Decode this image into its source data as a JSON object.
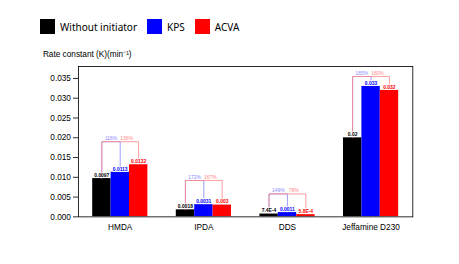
{
  "chart_data": {
    "type": "bar",
    "categories": [
      "HMDA",
      "IPDA",
      "DDS",
      "Jeffamine D230"
    ],
    "series": [
      {
        "name": "Without initiator",
        "color": "#000000",
        "values": [
          0.0097,
          0.0018,
          0.00074,
          0.02
        ],
        "value_labels": [
          "0.0097",
          "0.0018",
          "7.4E-4",
          "0.02"
        ]
      },
      {
        "name": "KPS",
        "color": "#0000FF",
        "values": [
          0.0113,
          0.0031,
          0.0011,
          0.033
        ],
        "value_labels": [
          "0.0113",
          "0.0031",
          "0.0011",
          "0.033"
        ]
      },
      {
        "name": "ACVA",
        "color": "#FF0000",
        "values": [
          0.0132,
          0.003,
          0.00058,
          0.032
        ],
        "value_labels": [
          "0.0132",
          "0.003",
          "5.8E-4",
          "0.032"
        ]
      }
    ],
    "annotations": [
      {
        "category": "HMDA",
        "from": "Without initiator",
        "to": "KPS",
        "y": 0.019,
        "text": "116%",
        "color": "#8888FF"
      },
      {
        "category": "HMDA",
        "from": "Without initiator",
        "to": "ACVA",
        "y": 0.019,
        "text": "136%",
        "color": "#FF8888"
      },
      {
        "category": "IPDA",
        "from": "Without initiator",
        "to": "KPS",
        "y": 0.0092,
        "text": "172%",
        "color": "#8888FF"
      },
      {
        "category": "IPDA",
        "from": "Without initiator",
        "to": "ACVA",
        "y": 0.0092,
        "text": "167%",
        "color": "#FF8888"
      },
      {
        "category": "DDS",
        "from": "Without initiator",
        "to": "KPS",
        "y": 0.0058,
        "text": "149%",
        "color": "#8888FF"
      },
      {
        "category": "DDS",
        "from": "Without initiator",
        "to": "ACVA",
        "y": 0.0058,
        "text": "78%",
        "color": "#FF8888"
      },
      {
        "category": "Jeffamine D230",
        "from": "Without initiator",
        "to": "KPS",
        "y": 0.0355,
        "text": "165%",
        "color": "#8888FF"
      },
      {
        "category": "Jeffamine D230",
        "from": "Without initiator",
        "to": "ACVA",
        "y": 0.0355,
        "text": "160%",
        "color": "#FF8888"
      }
    ],
    "ylabel": "Rate constant (K)(min⁻¹)",
    "ylim": [
      0,
      0.038
    ],
    "yticks": [
      {
        "value": 0,
        "label": "0.000"
      },
      0.005,
      {
        "value": 0.01,
        "label": "0.010"
      },
      0.015,
      {
        "value": 0.02,
        "label": "0.020"
      },
      0.025,
      {
        "value": 0.03,
        "label": "0.030"
      },
      0.035
    ],
    "data_labels": true,
    "legend": "upper left",
    "grid": false
  }
}
